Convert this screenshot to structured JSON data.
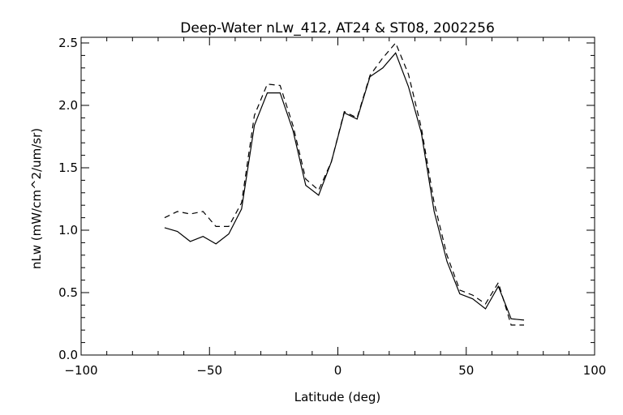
{
  "chart_data": {
    "type": "line",
    "title": "Deep-Water nLw_412, AT24 & ST08, 2002256",
    "xlabel": "Latitude (deg)",
    "ylabel": "nLw (mW/cm^2/um/sr)",
    "xlim": [
      -100,
      100
    ],
    "ylim": [
      0,
      2.5
    ],
    "xticks": [
      -100,
      -50,
      0,
      50,
      100
    ],
    "xtick_labels": [
      "−100",
      "−50",
      "0",
      "50",
      "100"
    ],
    "yticks": [
      0,
      0.5,
      1,
      1.5,
      2,
      2.5
    ],
    "ytick_labels": [
      "0.0",
      "0.5",
      "1.0",
      "1.5",
      "2.0",
      "2.5"
    ],
    "grid": false,
    "x": [
      -67.5,
      -62.5,
      -57.5,
      -52.5,
      -47.5,
      -42.5,
      -37.5,
      -32.5,
      -27.5,
      -22.5,
      -17.5,
      -12.5,
      -7.5,
      -2.5,
      2.5,
      7.5,
      12.5,
      17.5,
      22.5,
      27.5,
      32.5,
      37.5,
      42.5,
      47.5,
      52.5,
      57.5,
      62.5,
      67.5,
      72.5
    ],
    "series": [
      {
        "name": "AT24",
        "style": "solid",
        "values": [
          1.02,
          0.99,
          0.91,
          0.95,
          0.89,
          0.97,
          1.17,
          1.84,
          2.1,
          2.1,
          1.8,
          1.36,
          1.28,
          1.55,
          1.94,
          1.89,
          2.23,
          2.3,
          2.42,
          2.15,
          1.78,
          1.15,
          0.75,
          0.49,
          0.45,
          0.37,
          0.55,
          0.29,
          0.28
        ]
      },
      {
        "name": "ST08",
        "style": "dashed",
        "values": [
          1.1,
          1.15,
          1.13,
          1.15,
          1.03,
          1.03,
          1.22,
          1.92,
          2.17,
          2.16,
          1.84,
          1.41,
          1.32,
          1.55,
          1.95,
          1.9,
          2.24,
          2.38,
          2.5,
          2.25,
          1.82,
          1.22,
          0.8,
          0.52,
          0.48,
          0.41,
          0.58,
          0.24,
          0.24
        ]
      }
    ]
  }
}
